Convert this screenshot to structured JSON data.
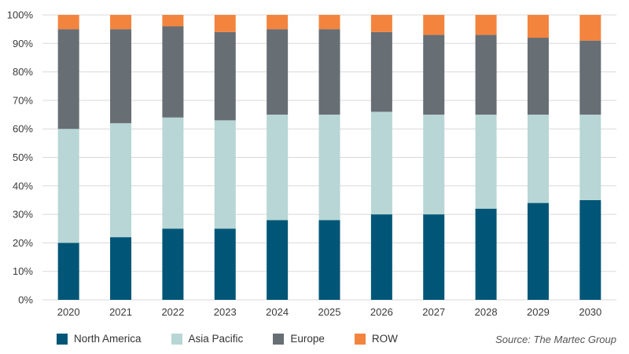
{
  "chart_data": {
    "type": "bar",
    "stacked": true,
    "percent_stacked": true,
    "categories": [
      "2020",
      "2021",
      "2022",
      "2023",
      "2024",
      "2025",
      "2026",
      "2027",
      "2028",
      "2029",
      "2030"
    ],
    "series": [
      {
        "name": "North America",
        "color": "#015677",
        "values": [
          20,
          22,
          25,
          25,
          28,
          28,
          30,
          30,
          32,
          34,
          35
        ]
      },
      {
        "name": "Asia Pacific",
        "color": "#b7d6d5",
        "values": [
          40,
          40,
          39,
          38,
          37,
          37,
          36,
          35,
          33,
          31,
          30
        ]
      },
      {
        "name": "Europe",
        "color": "#676e74",
        "values": [
          35,
          33,
          32,
          31,
          30,
          30,
          28,
          28,
          28,
          27,
          26
        ]
      },
      {
        "name": "ROW",
        "color": "#f3843e",
        "values": [
          5,
          5,
          4,
          6,
          5,
          5,
          6,
          7,
          7,
          8,
          9
        ]
      }
    ],
    "y_ticks": [
      "0%",
      "10%",
      "20%",
      "30%",
      "40%",
      "50%",
      "60%",
      "70%",
      "80%",
      "90%",
      "100%"
    ],
    "ylim": [
      0,
      100
    ],
    "grid": true,
    "legend_position": "bottom-left"
  },
  "source_note": "Source: The Martec Group"
}
